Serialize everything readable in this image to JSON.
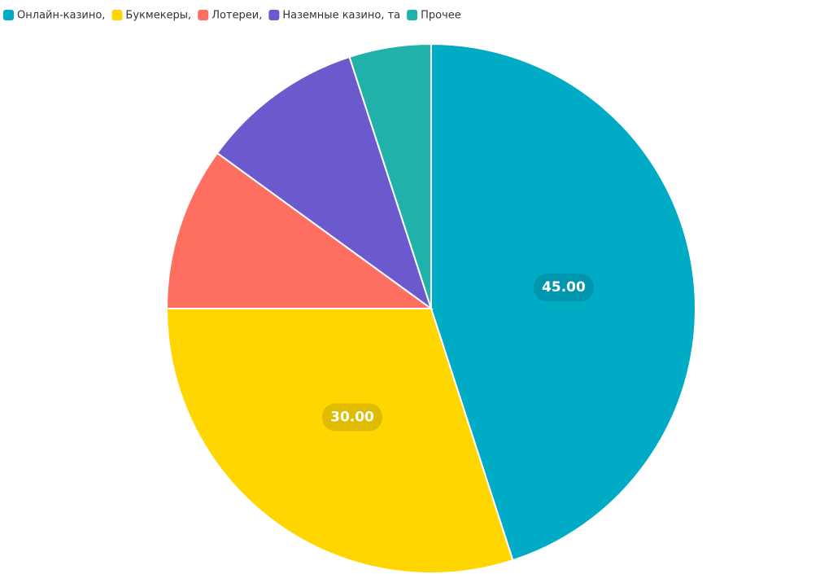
{
  "chart_data": {
    "type": "pie",
    "categories": [
      "Онлайн-казино,",
      "Букмекеры,",
      "Лотереи,",
      "Наземные казино, та",
      "Прочее"
    ],
    "values": [
      45,
      30,
      10,
      10,
      5
    ],
    "value_labels": [
      "45.00",
      "30.00",
      null,
      null,
      null
    ],
    "colors": [
      "#00abc5",
      "#ffd600",
      "#ff6f61",
      "#6a5acd",
      "#20b2aa"
    ],
    "legend": "top-left"
  }
}
